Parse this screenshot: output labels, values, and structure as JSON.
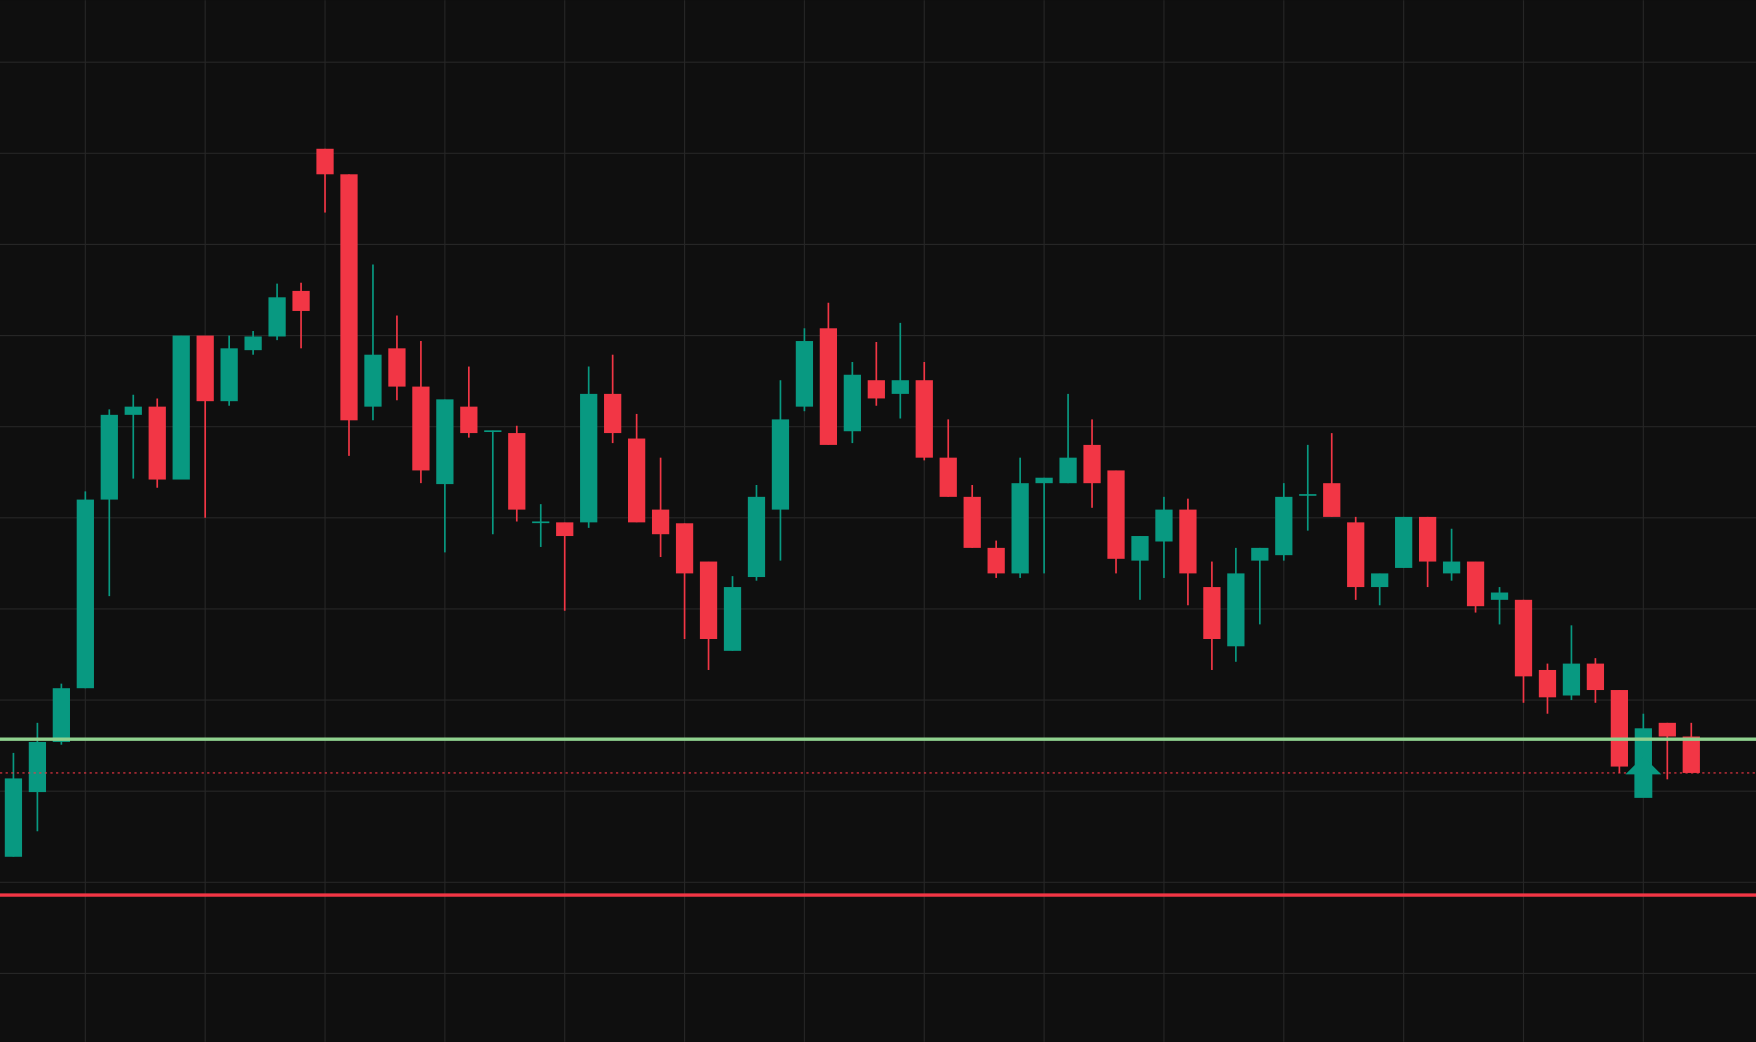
{
  "chart_data": {
    "type": "candlestick",
    "background": "#0f0f0f",
    "grid": true,
    "grid_color": "#262626",
    "up_color": "#089981",
    "down_color": "#f23645",
    "categories": [
      null,
      null,
      null,
      null,
      null,
      null,
      null,
      null,
      null,
      null,
      null,
      null,
      null,
      null,
      null,
      null,
      null,
      null,
      null,
      null,
      null,
      null,
      null,
      null,
      null,
      null,
      null,
      null,
      null,
      null,
      null,
      null,
      null,
      null,
      null,
      null,
      null,
      null,
      null,
      null,
      null,
      null,
      null,
      null,
      null,
      null,
      null,
      null,
      null,
      null,
      null,
      null,
      null,
      null,
      null,
      null,
      null,
      null,
      null,
      null,
      null,
      null,
      null,
      null,
      null,
      null,
      null,
      null,
      null,
      null,
      null
    ],
    "xlim": [
      -0.56,
      72.7
    ],
    "xticks": [
      3,
      8,
      13,
      18,
      23,
      28,
      33,
      38,
      43,
      48,
      53,
      58,
      63,
      68
    ],
    "ylim": [
      -7.5,
      106.8
    ],
    "yticks": [
      0,
      10,
      20,
      30,
      40,
      50,
      60,
      70,
      80,
      90,
      100
    ],
    "open": [
      12.8,
      19.9,
      25.4,
      31.3,
      52.0,
      61.3,
      62.2,
      54.2,
      70.0,
      62.8,
      68.4,
      69.9,
      74.9,
      90.5,
      87.7,
      62.2,
      68.6,
      64.4,
      53.7,
      62.2,
      59.5,
      59.3,
      49.5,
      49.5,
      49.5,
      63.6,
      58.7,
      50.9,
      49.4,
      45.2,
      35.4,
      43.5,
      50.9,
      62.2,
      70.8,
      59.5,
      65.1,
      63.6,
      65.1,
      56.6,
      52.3,
      46.7,
      43.9,
      53.8,
      53.8,
      58.0,
      55.2,
      45.3,
      47.4,
      50.9,
      42.4,
      35.9,
      45.3,
      45.9,
      52.5,
      53.8,
      49.5,
      42.4,
      44.5,
      50.1,
      43.9,
      45.2,
      41.0,
      41.0,
      33.3,
      30.5,
      34.0,
      31.1,
      22.6,
      27.5,
      26.0
    ],
    "high": [
      24.2,
      27.5,
      31.8,
      52.9,
      61.9,
      63.5,
      63.1,
      70.0,
      70.0,
      70.0,
      70.5,
      75.7,
      75.8,
      90.5,
      87.7,
      77.8,
      72.2,
      69.4,
      63.0,
      66.6,
      59.6,
      60.1,
      51.5,
      49.5,
      66.6,
      67.9,
      61.4,
      56.6,
      49.4,
      45.2,
      43.6,
      53.6,
      65.1,
      70.8,
      73.6,
      67.1,
      69.3,
      71.4,
      67.1,
      60.8,
      53.6,
      47.5,
      56.6,
      54.4,
      63.6,
      60.8,
      55.2,
      48.0,
      52.3,
      52.1,
      45.2,
      46.7,
      46.7,
      53.8,
      58.0,
      59.3,
      50.1,
      43.9,
      50.1,
      50.1,
      48.8,
      45.2,
      42.4,
      41.0,
      34.0,
      38.2,
      34.6,
      31.1,
      28.5,
      27.5,
      27.5
    ],
    "low": [
      12.8,
      15.6,
      25.1,
      31.3,
      41.4,
      54.3,
      53.3,
      54.2,
      50.0,
      62.3,
      67.9,
      69.5,
      68.6,
      83.5,
      56.8,
      60.7,
      62.9,
      53.8,
      46.2,
      58.8,
      48.2,
      49.6,
      46.8,
      39.8,
      48.9,
      58.2,
      49.5,
      45.7,
      36.7,
      33.3,
      35.4,
      43.1,
      45.3,
      61.7,
      58.0,
      58.2,
      62.3,
      60.9,
      56.3,
      52.3,
      46.7,
      43.4,
      43.4,
      43.9,
      53.8,
      51.1,
      43.9,
      41.0,
      43.4,
      40.4,
      33.3,
      34.2,
      38.3,
      45.3,
      48.6,
      50.1,
      41.0,
      40.4,
      44.5,
      42.4,
      43.1,
      39.6,
      38.3,
      29.7,
      28.5,
      30.0,
      29.7,
      22.0,
      21.6,
      21.3,
      22.0
    ],
    "close": [
      21.4,
      25.4,
      31.3,
      52.0,
      61.3,
      62.2,
      54.2,
      70.0,
      62.8,
      68.6,
      69.9,
      74.2,
      72.7,
      87.7,
      60.7,
      67.9,
      64.4,
      55.2,
      63.0,
      59.3,
      59.6,
      50.9,
      49.6,
      48.0,
      63.6,
      59.3,
      49.5,
      48.2,
      43.9,
      36.7,
      42.4,
      52.3,
      60.8,
      69.4,
      58.0,
      65.7,
      63.1,
      65.1,
      56.6,
      52.3,
      46.7,
      43.9,
      53.8,
      54.4,
      56.6,
      53.8,
      45.5,
      48.0,
      50.9,
      43.9,
      36.7,
      43.9,
      46.7,
      52.3,
      52.6,
      50.1,
      42.4,
      43.9,
      50.1,
      45.2,
      45.2,
      40.3,
      41.8,
      32.6,
      30.3,
      34.0,
      31.1,
      22.7,
      26.9,
      26.0,
      22.0
    ],
    "levels": [
      {
        "value": 25.7,
        "color": "#8fd18e"
      },
      {
        "value": 8.6,
        "color": "#f23645"
      }
    ],
    "last_price_line": true,
    "signals": [
      {
        "index": 68,
        "color": "#089981"
      }
    ]
  }
}
